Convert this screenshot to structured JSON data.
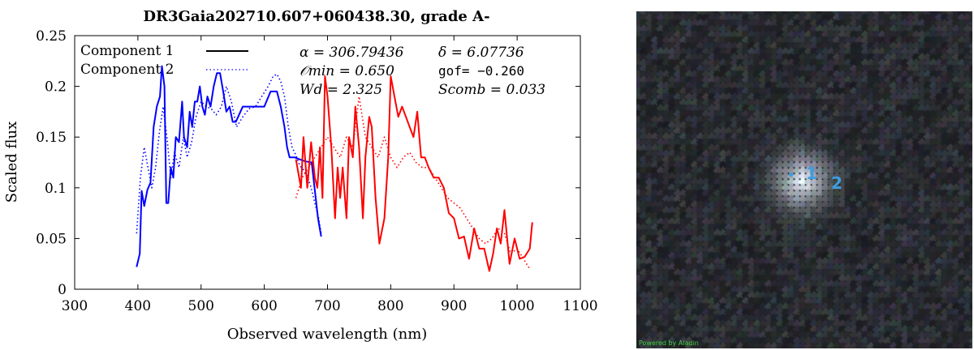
{
  "title": "DR3Gaia202710.607+060438.30, grade A-",
  "legend": {
    "component1": "Component 1",
    "component2": "Component 2"
  },
  "annotations": {
    "alpha": "α = 306.79436",
    "delta": "δ = 6.07736",
    "omin": "𝒪min = 0.650",
    "gof": "gof= −0.260",
    "wd": "Wd = 2.325",
    "scomb": "Scomb = 0.033"
  },
  "colors": {
    "blue": "#0000ff",
    "red": "#ff0000",
    "axis": "#000000"
  },
  "chart_data": {
    "type": "line",
    "title": "DR3Gaia202710.607+060438.30, grade A-",
    "xlabel": "Observed wavelength (nm)",
    "ylabel": "Scaled flux",
    "xlim": [
      300,
      1100
    ],
    "ylim": [
      0,
      0.25
    ],
    "xticks": [
      300,
      400,
      500,
      600,
      700,
      800,
      900,
      1000,
      1100
    ],
    "yticks": [
      0,
      0.05,
      0.1,
      0.15,
      0.2,
      0.25
    ],
    "ytick_labels": [
      "0",
      "0.05",
      "0.1",
      "0.15",
      "0.2",
      "0.25"
    ],
    "grid": false,
    "legend_position": "top-left",
    "series": [
      {
        "name": "Component 1",
        "style": "solid",
        "color": "#0000ff",
        "x": [
          398,
          403,
          406,
          410,
          415,
          420,
          425,
          430,
          435,
          438,
          442,
          445,
          448,
          452,
          456,
          460,
          465,
          470,
          473,
          478,
          482,
          486,
          490,
          494,
          498,
          502,
          506,
          510,
          515,
          520,
          525,
          530,
          535,
          540,
          545,
          550,
          555,
          560,
          566,
          572,
          580,
          590,
          600,
          610,
          615,
          620,
          626,
          632,
          636,
          640,
          648,
          656,
          665,
          675,
          685,
          690
        ],
        "y": [
          0.022,
          0.035,
          0.097,
          0.082,
          0.098,
          0.105,
          0.16,
          0.18,
          0.19,
          0.22,
          0.2,
          0.085,
          0.085,
          0.12,
          0.11,
          0.15,
          0.145,
          0.185,
          0.15,
          0.14,
          0.175,
          0.16,
          0.185,
          0.185,
          0.2,
          0.18,
          0.172,
          0.19,
          0.18,
          0.2,
          0.213,
          0.213,
          0.195,
          0.175,
          0.18,
          0.165,
          0.165,
          0.172,
          0.18,
          0.18,
          0.18,
          0.18,
          0.18,
          0.195,
          0.195,
          0.195,
          0.18,
          0.16,
          0.14,
          0.13,
          0.13,
          0.128,
          0.126,
          0.125,
          0.07,
          0.052
        ]
      },
      {
        "name": "Component 2",
        "style": "dotted",
        "color": "#0000ff",
        "x": [
          398,
          404,
          410,
          416,
          422,
          428,
          434,
          440,
          446,
          452,
          458,
          465,
          472,
          478,
          485,
          492,
          500,
          508,
          516,
          524,
          532,
          540,
          548,
          556,
          566,
          576,
          586,
          596,
          606,
          614,
          620,
          626,
          632,
          638,
          644,
          650,
          656,
          662,
          668,
          674,
          680,
          686,
          690
        ],
        "y": [
          0.055,
          0.11,
          0.14,
          0.12,
          0.1,
          0.12,
          0.155,
          0.18,
          0.15,
          0.11,
          0.135,
          0.12,
          0.15,
          0.13,
          0.145,
          0.17,
          0.185,
          0.18,
          0.178,
          0.172,
          0.18,
          0.2,
          0.185,
          0.16,
          0.17,
          0.178,
          0.18,
          0.19,
          0.2,
          0.21,
          0.212,
          0.205,
          0.19,
          0.16,
          0.14,
          0.132,
          0.122,
          0.118,
          0.112,
          0.1,
          0.085,
          0.07,
          0.055
        ]
      },
      {
        "name": "",
        "style": "solid",
        "color": "#ff0000",
        "x": [
          650,
          658,
          662,
          668,
          674,
          680,
          684,
          688,
          692,
          696,
          700,
          706,
          712,
          716,
          720,
          724,
          730,
          734,
          740,
          744,
          750,
          756,
          760,
          766,
          770,
          776,
          782,
          790,
          796,
          800,
          806,
          812,
          818,
          824,
          830,
          836,
          842,
          848,
          854,
          860,
          868,
          876,
          884,
          892,
          900,
          908,
          916,
          924,
          932,
          940,
          948,
          956,
          962,
          968,
          974,
          980,
          988,
          996,
          1004,
          1012,
          1020,
          1024
        ],
        "y": [
          0.128,
          0.1,
          0.15,
          0.1,
          0.145,
          0.11,
          0.1,
          0.14,
          0.09,
          0.21,
          0.19,
          0.14,
          0.07,
          0.12,
          0.09,
          0.12,
          0.07,
          0.15,
          0.13,
          0.18,
          0.14,
          0.07,
          0.13,
          0.17,
          0.16,
          0.09,
          0.045,
          0.07,
          0.13,
          0.21,
          0.19,
          0.17,
          0.18,
          0.17,
          0.16,
          0.15,
          0.175,
          0.13,
          0.13,
          0.12,
          0.11,
          0.11,
          0.1,
          0.075,
          0.07,
          0.05,
          0.052,
          0.03,
          0.06,
          0.04,
          0.04,
          0.018,
          0.035,
          0.06,
          0.045,
          0.078,
          0.025,
          0.05,
          0.03,
          0.032,
          0.04,
          0.066
        ]
      },
      {
        "name": "",
        "style": "dotted",
        "color": "#ff0000",
        "x": [
          650,
          660,
          670,
          680,
          690,
          700,
          710,
          720,
          730,
          740,
          750,
          760,
          770,
          780,
          790,
          800,
          810,
          820,
          830,
          840,
          850,
          860,
          870,
          880,
          890,
          900,
          910,
          920,
          930,
          940,
          950,
          960,
          970,
          980,
          990,
          1000,
          1010,
          1020
        ],
        "y": [
          0.09,
          0.11,
          0.12,
          0.13,
          0.14,
          0.15,
          0.14,
          0.13,
          0.15,
          0.14,
          0.19,
          0.15,
          0.14,
          0.13,
          0.15,
          0.13,
          0.12,
          0.13,
          0.135,
          0.125,
          0.12,
          0.12,
          0.11,
          0.1,
          0.09,
          0.085,
          0.08,
          0.07,
          0.06,
          0.05,
          0.045,
          0.05,
          0.06,
          0.055,
          0.035,
          0.04,
          0.03,
          0.02
        ]
      }
    ]
  },
  "sky_image": {
    "markers": [
      "1",
      "2"
    ],
    "credit": "Powered by Aladin"
  }
}
